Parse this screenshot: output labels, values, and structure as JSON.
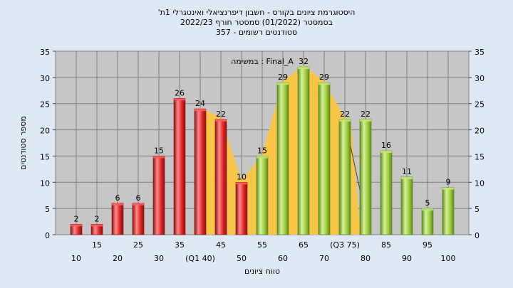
{
  "chart_data": {
    "type": "bar",
    "title_lines": [
      "'היסטוגרמת ציונים בקורס - חשבון דיפרנציאלי ואינטגרלי 1ת",
      "בסמסטר  (01/2022)  סמסטר חורף  2022/23",
      "סטודנטים רשומים - 357"
    ],
    "legend_note": "במשימה : Final_A",
    "xlabel": "טווח ציונים",
    "ylabel": "מספר סטודנטים",
    "ylim": [
      0,
      35
    ],
    "yticks": [
      0,
      5,
      10,
      15,
      20,
      25,
      30,
      35
    ],
    "grid": true,
    "categories": [
      "10",
      "15",
      "20",
      "25",
      "30",
      "35",
      "40",
      "45",
      "50",
      "55",
      "60",
      "65",
      "70",
      "75",
      "80",
      "85",
      "90",
      "95",
      "100"
    ],
    "category_labels": [
      "10",
      "15",
      "20",
      "25",
      "30",
      "35",
      "(Q1 40)",
      "45",
      "50",
      "55",
      "60",
      "65",
      "70",
      "(Q3 75)",
      "80",
      "85",
      "90",
      "95",
      "100"
    ],
    "values": [
      2,
      2,
      6,
      6,
      15,
      26,
      24,
      22,
      10,
      15,
      29,
      32,
      29,
      22,
      22,
      16,
      11,
      5,
      9
    ],
    "bar_colors_by_index": [
      "red",
      "red",
      "red",
      "red",
      "red",
      "red",
      "red",
      "red",
      "red",
      "green",
      "green",
      "green",
      "green",
      "green",
      "green",
      "green",
      "green",
      "green",
      "green"
    ],
    "colors": {
      "red": "#e02424",
      "green": "#9ccc3c",
      "area": "#f7c646",
      "background": "#dfe9f5",
      "plot_background": "#c6c6c6"
    },
    "quartile_band": {
      "from_category": "40",
      "to_category": "75"
    }
  }
}
